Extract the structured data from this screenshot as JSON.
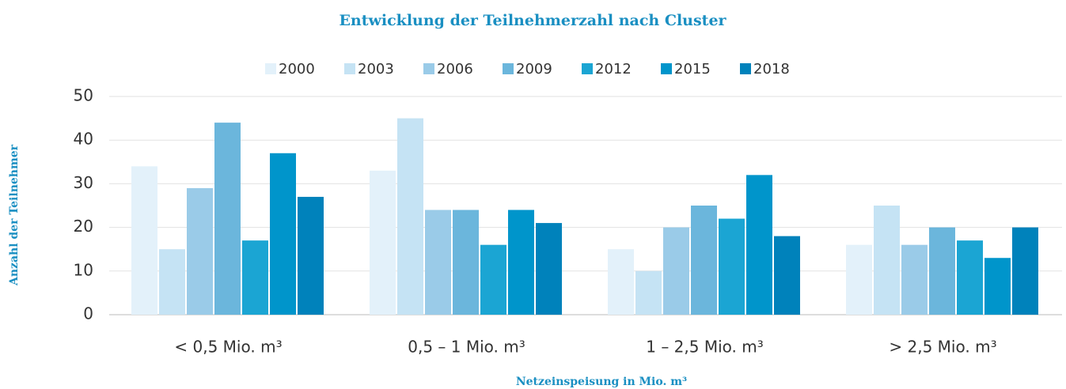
{
  "chart_data": {
    "type": "bar",
    "title": "Entwicklung der Teilnehmerzahl nach Cluster",
    "x_label": "Netzeinspeisung in Mio. m³",
    "y_label": "Anzahl der Teilnehmer",
    "categories": [
      "< 0,5 Mio. m³",
      "0,5 – 1 Mio. m³",
      "1 – 2,5 Mio. m³",
      "> 2,5 Mio. m³"
    ],
    "series": [
      {
        "name": "2000",
        "color": "#e3f1fa",
        "values": [
          34,
          33,
          15,
          16
        ]
      },
      {
        "name": "2003",
        "color": "#c5e3f4",
        "values": [
          15,
          45,
          10,
          25
        ]
      },
      {
        "name": "2006",
        "color": "#9acbe8",
        "values": [
          29,
          24,
          20,
          16
        ]
      },
      {
        "name": "2009",
        "color": "#6bb6dc",
        "values": [
          44,
          24,
          25,
          20
        ]
      },
      {
        "name": "2012",
        "color": "#1ba5d3",
        "values": [
          17,
          16,
          22,
          17
        ]
      },
      {
        "name": "2015",
        "color": "#0095cb",
        "values": [
          37,
          24,
          32,
          13
        ]
      },
      {
        "name": "2018",
        "color": "#0082bb",
        "values": [
          27,
          21,
          18,
          20
        ]
      }
    ],
    "ylim": [
      0,
      50
    ],
    "yticks": [
      0,
      10,
      20,
      30,
      40,
      50
    ],
    "grid": true,
    "legend": "top"
  }
}
